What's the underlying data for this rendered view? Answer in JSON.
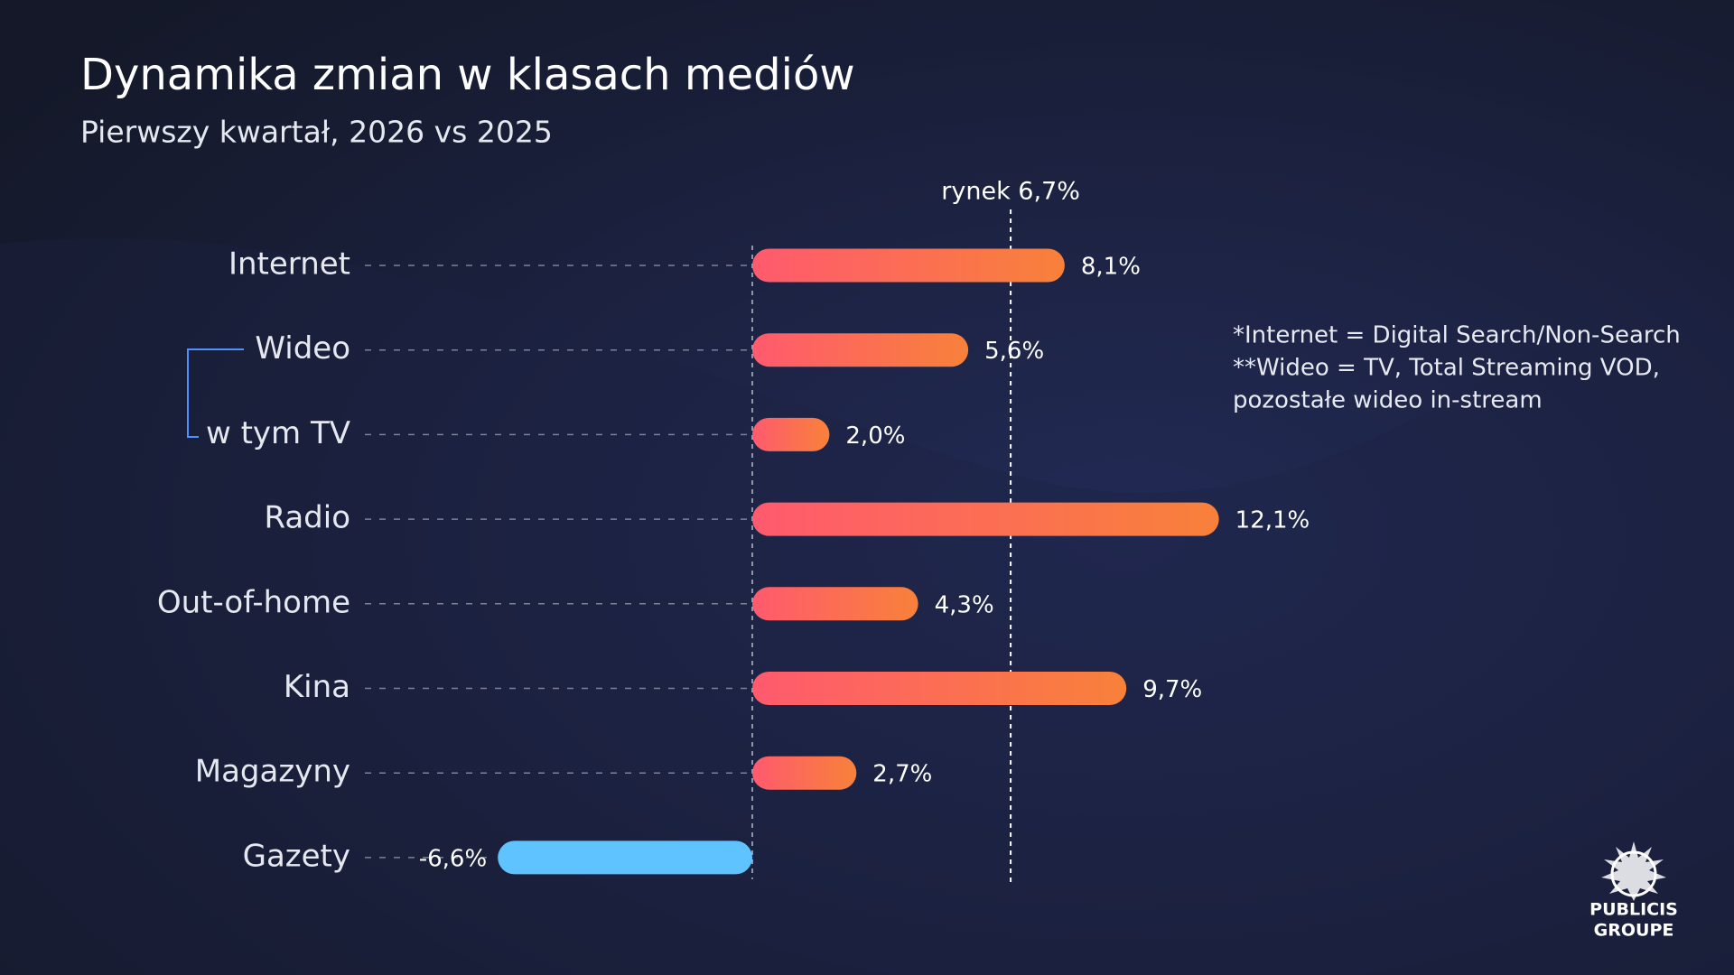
{
  "chart_data": {
    "type": "bar",
    "orientation": "horizontal",
    "title": "Dynamika zmian w klasach mediów",
    "subtitle": "Pierwszy kwartał, 2026 vs 2025",
    "categories": [
      "Internet",
      "Wideo",
      "w tym TV",
      "Radio",
      "Out-of-home",
      "Kina",
      "Magazyny",
      "Gazety"
    ],
    "values": [
      8.1,
      5.6,
      2.0,
      12.1,
      4.3,
      9.7,
      2.7,
      -6.6
    ],
    "value_labels": [
      "8,1%",
      "5,6%",
      "2,0%",
      "12,1%",
      "4,3%",
      "9,7%",
      "2,7%",
      "-6,6%"
    ],
    "color": [
      "#ff5a6e",
      "#f8813a"
    ],
    "negative_color": "#5ec3ff",
    "reference": {
      "value": 6.7,
      "label": "rynek 6,7%"
    },
    "notes": [
      "*Internet = Digital Search/Non-Search",
      "**Wideo = TV, Total Streaming VOD,",
      "pozostałe wideo in-stream"
    ]
  },
  "logo": [
    "PUBLICIS",
    "GROUPE"
  ]
}
